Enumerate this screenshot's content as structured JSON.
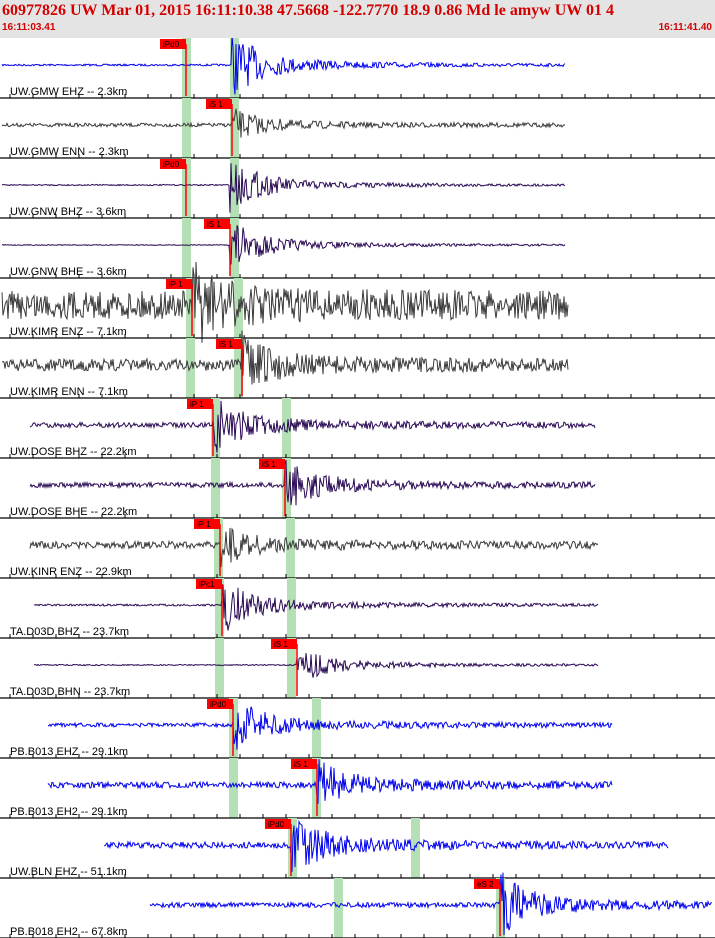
{
  "header": {
    "title": "60977826 UW Mar 01, 2015 16:11:10.38   47.5668 -122.7770 18.9 0.86 Md le amyw UW 01   4",
    "start_time": "16:11:03.41",
    "end_time": "16:11:41.40"
  },
  "colors": {
    "pick": "#ff0000",
    "pick_flag": "#ff0000",
    "zone": "#b5dfb5",
    "wave_blue": "#0000ee",
    "wave_dark": "#3a3a3a",
    "wave_purple": "#2a0a55"
  },
  "traces": [
    {
      "label": "UW.GMW EHZ -- 2.3km",
      "color": "blue",
      "pick": "iPd0"
    },
    {
      "label": "UW.GMW ENN -- 2.3km",
      "color": "dark",
      "pick": "iS 1"
    },
    {
      "label": "UW.GNW BHZ -- 3.6km",
      "color": "purple",
      "pick": "iPd0"
    },
    {
      "label": "UW.GNW BHE -- 3.6km",
      "color": "purple",
      "pick": "iS 1"
    },
    {
      "label": "UW.KIMR ENZ -- 7.1km",
      "color": "dark",
      "pick": "iP 1"
    },
    {
      "label": "UW.KIMR ENN -- 7.1km",
      "color": "dark",
      "pick": "iS 1"
    },
    {
      "label": "UW.DOSE BHZ -- 22.2km",
      "color": "purple",
      "pick": "iP 1"
    },
    {
      "label": "UW.DOSE BHE -- 22.2km",
      "color": "purple",
      "pick": "iS 1"
    },
    {
      "label": "UW.KINR ENZ -- 22.9km",
      "color": "dark",
      "pick": "iP 1"
    },
    {
      "label": "TA.D03D BHZ -- 23.7km",
      "color": "purple",
      "pick": "iPc1"
    },
    {
      "label": "TA.D03D BHN -- 23.7km",
      "color": "purple",
      "pick": "iS 1"
    },
    {
      "label": "PB.B013 EHZ -- 29.1km",
      "color": "blue",
      "pick": "iPd0"
    },
    {
      "label": "PB.B013 EH2 -- 29.1km",
      "color": "blue",
      "pick": "iS 1"
    },
    {
      "label": "UW.BLN EHZ -- 51.1km",
      "color": "blue",
      "pick": "iPd0"
    },
    {
      "label": "PB.B018 EH2 -- 67.8km",
      "color": "blue",
      "pick": "eS 2"
    }
  ]
}
